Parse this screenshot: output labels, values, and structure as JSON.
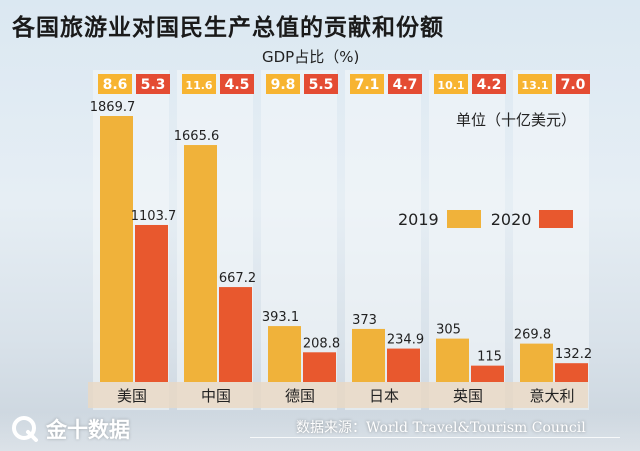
{
  "title": "各国旅游业对国民生产总值的贡献和份额",
  "gdp_share_label": "GDP占比（%)",
  "unit_label": "单位（十亿美元）",
  "source": "数据来源：World Travel&Tourism Council",
  "brand": "金十数据",
  "legend": [
    {
      "label": "2019",
      "color": "#f0b23a"
    },
    {
      "label": "2020",
      "color": "#e8582e"
    }
  ],
  "colors": {
    "bar_2019": "#f0b23a",
    "bar_2020": "#e8582e",
    "badge_2019": "#f7b431",
    "badge_2020": "#e44c33",
    "column_bg": "#f4f7fa",
    "axis_band": "#ead8c3"
  },
  "chart_data": {
    "type": "bar",
    "title": "各国旅游业对国民生产总值的贡献和份额",
    "categories": [
      "美国",
      "中国",
      "德国",
      "日本",
      "英国",
      "意大利"
    ],
    "series": [
      {
        "name": "2019",
        "values": [
          1869.7,
          1665.6,
          393.1,
          373,
          305,
          269.8
        ],
        "labels": [
          "1869.7",
          "1665.6",
          "393.1",
          "373",
          "305",
          "269.8"
        ],
        "gdp_share": [
          "8.6",
          "11.6",
          "9.8",
          "7.1",
          "10.1",
          "13.1"
        ]
      },
      {
        "name": "2020",
        "values": [
          1103.7,
          667.2,
          208.8,
          234.9,
          115,
          132.2
        ],
        "labels": [
          "1103.7",
          "667.2",
          "208.8",
          "234.9",
          "115",
          "132.2"
        ],
        "gdp_share": [
          "5.3",
          "4.5",
          "5.5",
          "4.7",
          "4.2",
          "7.0"
        ]
      }
    ],
    "xlabel": "",
    "ylabel": "十亿美元",
    "ylim": [
      0,
      1869.7
    ],
    "legend_position": "right"
  }
}
